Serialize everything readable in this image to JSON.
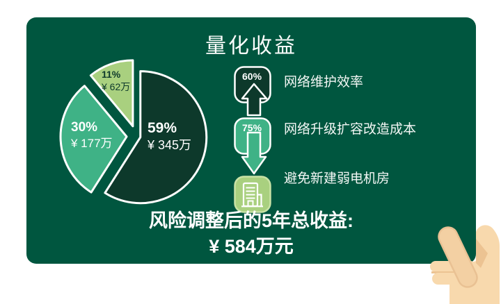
{
  "card": {
    "title": "量化收益",
    "background": "#00563F",
    "summary_line1": "风险调整后的5年总收益:",
    "summary_line2": "¥ 584万元"
  },
  "benefits": [
    {
      "badge": "60%",
      "label": "网络维护效率",
      "color": "#0D392B",
      "icon": "arrow-up-icon"
    },
    {
      "badge": "75%",
      "label": "网络升级扩容改造成本",
      "color": "#3FB286",
      "icon": "arrow-down-icon"
    },
    {
      "badge": "",
      "label": "避免新建弱电机房",
      "color": "#A9D07F",
      "border": "#C9E2A6",
      "icon": "building-icon"
    }
  ],
  "chart_data": {
    "type": "pie",
    "title": "量化收益",
    "exploded": true,
    "legend": "none",
    "slices": [
      {
        "label": "59%",
        "percent": 59,
        "value_text": "¥ 345万",
        "value_wan": 345,
        "color": "#0D392B",
        "text_color": "#FFFFFF"
      },
      {
        "label": "30%",
        "percent": 30,
        "value_text": "¥ 177万",
        "value_wan": 177,
        "color": "#3FB286",
        "text_color": "#FFFFFF"
      },
      {
        "label": "11%",
        "percent": 11,
        "value_text": "¥ 62万",
        "value_wan": 62,
        "color": "#A9D07F",
        "text_color": "#0D392B"
      }
    ],
    "total_label": "风险调整后的5年总收益:",
    "total_value_text": "¥ 584万元",
    "total_wan": 584
  },
  "hand": {
    "skin": "#F8D9AD",
    "shade": "#ECC392",
    "thumb_fill": "#F3D0A3",
    "thumb_stroke": "#E9C193"
  }
}
